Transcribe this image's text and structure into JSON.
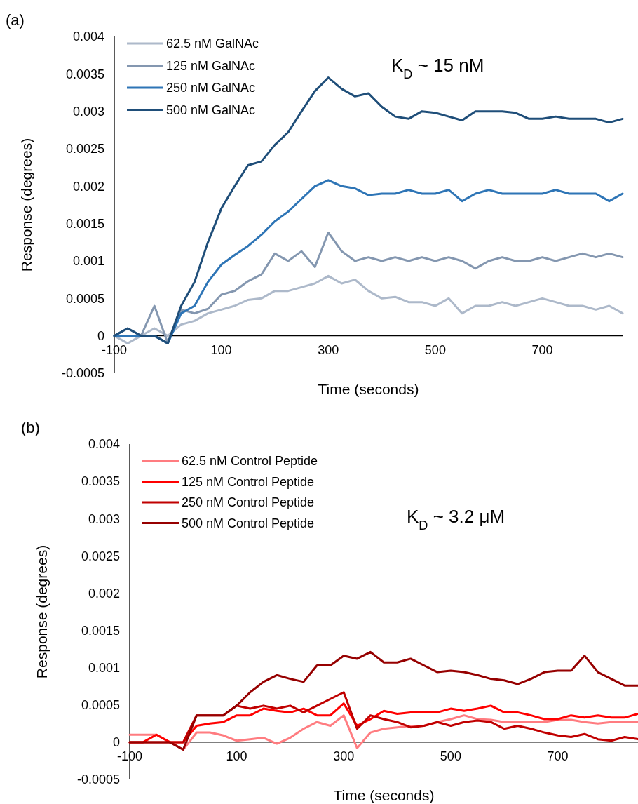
{
  "chart_data": [
    {
      "type": "line",
      "title": "(a)",
      "xlabel": "Time (seconds)",
      "ylabel": "Response (degrees)",
      "annotations": [
        "K$_{D}$ ~ 15 nM"
      ],
      "x": [
        -100,
        -75,
        -50,
        -25,
        0,
        25,
        50,
        75,
        100,
        125,
        150,
        175,
        200,
        225,
        250,
        275,
        300,
        325,
        350,
        375,
        400,
        425,
        450,
        475,
        500,
        525,
        550,
        575,
        600,
        625,
        650,
        675,
        700,
        725,
        750,
        775,
        800,
        825,
        850
      ],
      "xlim": [
        -100,
        850
      ],
      "xticks": [
        -100,
        100,
        300,
        500,
        700
      ],
      "ylim": [
        -0.0005,
        0.004
      ],
      "yticks": [
        -0.0005,
        0,
        0.0005,
        0.001,
        0.0015,
        0.002,
        0.0025,
        0.003,
        0.0035,
        0.004
      ],
      "grid": false,
      "legend": "top left",
      "marker": "none",
      "line_style": "solid",
      "series": [
        {
          "name": "62.5 nM GalNAc",
          "color": "#adb9ca",
          "values": [
            0,
            -0.0001,
            0,
            0.0001,
            0,
            0.00015,
            0.0002,
            0.0003,
            0.00035,
            0.0004,
            0.00048,
            0.0005,
            0.0006,
            0.0006,
            0.00065,
            0.0007,
            0.0008,
            0.0007,
            0.00075,
            0.0006,
            0.0005,
            0.00052,
            0.00045,
            0.00045,
            0.0004,
            0.0005,
            0.0003,
            0.0004,
            0.0004,
            0.00045,
            0.0004,
            0.00045,
            0.0005,
            0.00045,
            0.0004,
            0.0004,
            0.00035,
            0.0004,
            0.0003
          ]
        },
        {
          "name": "125 nM GalNAc",
          "color": "#8497b0",
          "values": [
            0,
            0.0001,
            0,
            0.0004,
            -0.0001,
            0.00035,
            0.0003,
            0.00036,
            0.00055,
            0.0006,
            0.00073,
            0.00082,
            0.0011,
            0.001,
            0.00113,
            0.00092,
            0.00138,
            0.00113,
            0.001,
            0.00105,
            0.001,
            0.00105,
            0.001,
            0.00105,
            0.001,
            0.00105,
            0.001,
            0.0009,
            0.001,
            0.00105,
            0.001,
            0.001,
            0.00105,
            0.001,
            0.00105,
            0.0011,
            0.00105,
            0.0011,
            0.00105
          ]
        },
        {
          "name": "250 nM GalNAc",
          "color": "#2e75b6",
          "values": [
            0,
            0,
            0,
            0,
            -0.0001,
            0.0003,
            0.0004,
            0.00072,
            0.00095,
            0.00108,
            0.0012,
            0.00135,
            0.00153,
            0.00166,
            0.00183,
            0.002,
            0.00208,
            0.002,
            0.00197,
            0.00188,
            0.0019,
            0.0019,
            0.00195,
            0.0019,
            0.0019,
            0.00195,
            0.0018,
            0.0019,
            0.00195,
            0.0019,
            0.0019,
            0.0019,
            0.0019,
            0.00195,
            0.0019,
            0.0019,
            0.0019,
            0.0018,
            0.0019
          ]
        },
        {
          "name": "500 nM GalNAc",
          "color": "#1f4e79",
          "values": [
            0,
            0.0001,
            0,
            0,
            -0.0001,
            0.0004,
            0.00072,
            0.00125,
            0.0017,
            0.002,
            0.00228,
            0.00233,
            0.00255,
            0.00272,
            0.003,
            0.00327,
            0.00345,
            0.0033,
            0.0032,
            0.00324,
            0.00306,
            0.00293,
            0.0029,
            0.003,
            0.00298,
            0.00293,
            0.00288,
            0.003,
            0.003,
            0.003,
            0.00298,
            0.0029,
            0.0029,
            0.00293,
            0.0029,
            0.0029,
            0.0029,
            0.00285,
            0.0029
          ]
        }
      ]
    },
    {
      "type": "line",
      "title": "(b)",
      "xlabel": "Time (seconds)",
      "ylabel": "Response (degrees)",
      "annotations": [
        "K$_{D}$ ~ 3.2 μM"
      ],
      "x": [
        -100,
        -75,
        -50,
        -25,
        0,
        25,
        50,
        75,
        100,
        125,
        150,
        175,
        200,
        225,
        250,
        275,
        300,
        325,
        350,
        375,
        400,
        425,
        450,
        475,
        500,
        525,
        550,
        575,
        600,
        625,
        650,
        675,
        700,
        725,
        750,
        775,
        800,
        825,
        850
      ],
      "xlim": [
        -100,
        850
      ],
      "xticks": [
        -100,
        100,
        300,
        500,
        700
      ],
      "ylim": [
        -0.0005,
        0.004
      ],
      "yticks": [
        -0.0005,
        0,
        0.0005,
        0.001,
        0.0015,
        0.002,
        0.0025,
        0.003,
        0.0035,
        0.004
      ],
      "grid": false,
      "legend": "top left",
      "marker": "none",
      "line_style": "solid",
      "series": [
        {
          "name": "62.5 nM Control Peptide",
          "color": "#ff7c80",
          "values": [
            0.0001,
            0.0001,
            0.0001,
            0,
            -0.0001,
            0.00013,
            0.00013,
            9e-05,
            2e-05,
            4e-05,
            6e-05,
            -2e-05,
            6e-05,
            0.00018,
            0.00027,
            0.00022,
            0.00036,
            -8e-05,
            0.00013,
            0.00018,
            0.0002,
            0.00022,
            0.00022,
            0.00027,
            0.00031,
            0.00036,
            0.00031,
            0.0003,
            0.00027,
            0.00027,
            0.00027,
            0.00027,
            0.0003,
            0.0003,
            0.00027,
            0.00025,
            0.00027,
            0.00027,
            0.00027
          ]
        },
        {
          "name": "125 nM Control Peptide",
          "color": "#ff0000",
          "values": [
            0,
            0,
            0.0001,
            0,
            0,
            0.00022,
            0.00025,
            0.00027,
            0.00036,
            0.00036,
            0.00045,
            0.00042,
            0.0004,
            0.00045,
            0.00036,
            0.00036,
            0.00052,
            0.00022,
            0.00031,
            0.00042,
            0.00038,
            0.0004,
            0.0004,
            0.0004,
            0.00045,
            0.00042,
            0.00045,
            0.00049,
            0.0004,
            0.0004,
            0.00036,
            0.00031,
            0.00031,
            0.00036,
            0.00033,
            0.00036,
            0.00033,
            0.00033,
            0.00038
          ]
        },
        {
          "name": "250 nM Control Peptide",
          "color": "#c00000",
          "values": [
            0,
            0,
            0,
            0,
            0,
            0.00036,
            0.00036,
            0.00036,
            0.00049,
            0.00045,
            0.00049,
            0.00045,
            0.00049,
            0.0004,
            0.00049,
            0.00058,
            0.00067,
            0.00018,
            0.00036,
            0.00031,
            0.00027,
            0.0002,
            0.00022,
            0.00027,
            0.00022,
            0.00027,
            0.00029,
            0.00027,
            0.00018,
            0.00022,
            0.00018,
            0.00013,
            9e-05,
            7e-05,
            0.00011,
            4e-05,
            2e-05,
            7e-05,
            4e-05
          ]
        },
        {
          "name": "500 nM Control Peptide",
          "color": "#960000",
          "values": [
            0,
            0,
            0,
            0,
            -0.0001,
            0.00036,
            0.00036,
            0.00036,
            0.00049,
            0.00067,
            0.00081,
            0.0009,
            0.00085,
            0.00081,
            0.00103,
            0.00103,
            0.00116,
            0.00112,
            0.00121,
            0.00107,
            0.00107,
            0.00112,
            0.00103,
            0.00094,
            0.00096,
            0.00094,
            0.0009,
            0.00085,
            0.00083,
            0.00078,
            0.00085,
            0.00094,
            0.00096,
            0.00096,
            0.00116,
            0.00094,
            0.00085,
            0.00076,
            0.00076
          ]
        }
      ]
    }
  ]
}
